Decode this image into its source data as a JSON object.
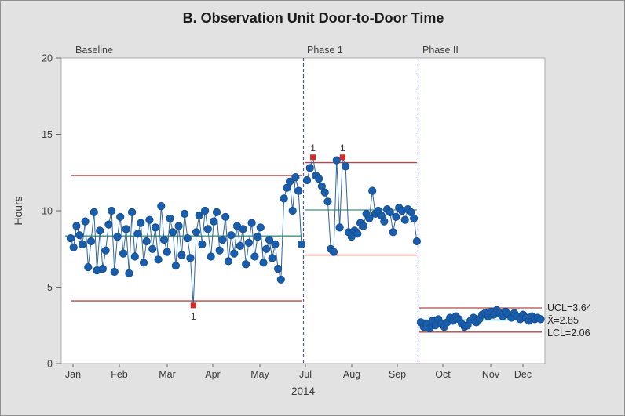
{
  "chart_data": {
    "type": "line",
    "chart_kind": "individuals-control-chart",
    "title": "B. Observation Unit Door-to-Door Time",
    "ylabel": "Hours",
    "xlabel": "2014",
    "ylim": [
      0,
      20
    ],
    "y_ticks": [
      0,
      5,
      10,
      15,
      20
    ],
    "x_ticks": [
      "Jan",
      "Feb",
      "Mar",
      "Apr",
      "May",
      "Jul",
      "Aug",
      "Sep",
      "Oct",
      "Nov",
      "Dec"
    ],
    "grid": false,
    "legend": "none",
    "colors": {
      "point": "#1a5dab",
      "point_stroke": "#114c8e",
      "connector": "#31669f",
      "center_line": "#3a9180",
      "limit_line": "#b54744",
      "out_of_control": "#d42a2a",
      "phase_divider": "#5355a7",
      "plot_bg": "#ffffff",
      "figure_bg": "#e2e2e2"
    },
    "right_labels": {
      "ucl": "UCL=3.64",
      "mean": "X̄=2.85",
      "lcl": "LCL=2.06"
    },
    "phases": [
      {
        "label": "Baseline",
        "ucl": 12.3,
        "center": 8.35,
        "lcl": 4.1,
        "flag_label": "1",
        "flag_position": "below",
        "out_of_control_indices": [
          42
        ],
        "values": [
          8.2,
          7.6,
          9.0,
          8.4,
          7.8,
          9.3,
          6.3,
          8.0,
          9.9,
          6.1,
          8.7,
          6.2,
          7.4,
          9.1,
          10.0,
          6.0,
          8.3,
          9.6,
          7.2,
          8.8,
          5.9,
          9.9,
          7.0,
          8.5,
          9.2,
          6.6,
          8.0,
          9.4,
          7.5,
          8.9,
          6.8,
          10.3,
          8.1,
          7.3,
          9.5,
          8.6,
          6.4,
          9.0,
          7.1,
          9.8,
          8.2,
          6.9,
          3.8,
          8.6,
          9.7,
          7.8,
          10.0,
          8.8,
          7.0,
          9.3,
          9.9,
          7.4,
          8.1,
          9.6,
          6.7,
          8.4,
          7.2,
          9.0,
          7.7,
          8.8,
          6.5,
          7.9,
          9.2,
          7.0,
          8.3,
          8.9,
          6.6,
          7.5,
          8.1,
          6.9,
          7.8,
          6.2,
          5.5,
          10.8,
          11.5,
          11.9,
          10.0,
          12.2,
          11.3,
          7.8
        ]
      },
      {
        "label": "Phase 1",
        "ucl": 13.15,
        "center": 10.05,
        "lcl": 7.1,
        "flag_label": "1",
        "flag_position": "above",
        "out_of_control_indices": [
          2,
          12
        ],
        "values": [
          12.0,
          12.8,
          13.5,
          12.3,
          12.1,
          11.6,
          11.2,
          10.6,
          7.5,
          7.3,
          13.3,
          8.9,
          13.5,
          12.9,
          8.6,
          8.3,
          8.7,
          8.5,
          9.2,
          9.0,
          9.8,
          9.5,
          11.3,
          9.8,
          10.0,
          9.7,
          9.3,
          10.1,
          9.9,
          8.6,
          9.6,
          10.2,
          10.0,
          9.4,
          10.1,
          9.9,
          9.5,
          8.0
        ]
      },
      {
        "label": "Phase II",
        "ucl": 3.64,
        "center": 2.85,
        "lcl": 2.06,
        "flag_label": "1",
        "flag_position": "below",
        "out_of_control_indices": [],
        "values": [
          2.7,
          2.4,
          2.6,
          2.3,
          2.8,
          2.5,
          2.9,
          2.6,
          2.4,
          2.7,
          3.0,
          2.8,
          3.1,
          2.9,
          2.6,
          2.4,
          2.5,
          2.8,
          3.0,
          2.7,
          2.9,
          3.2,
          3.3,
          3.1,
          3.4,
          3.2,
          3.5,
          3.3,
          3.1,
          3.4,
          3.2,
          3.0,
          3.3,
          3.1,
          2.9,
          3.2,
          3.0,
          2.8,
          3.1,
          2.9,
          3.0,
          2.9
        ]
      }
    ]
  }
}
